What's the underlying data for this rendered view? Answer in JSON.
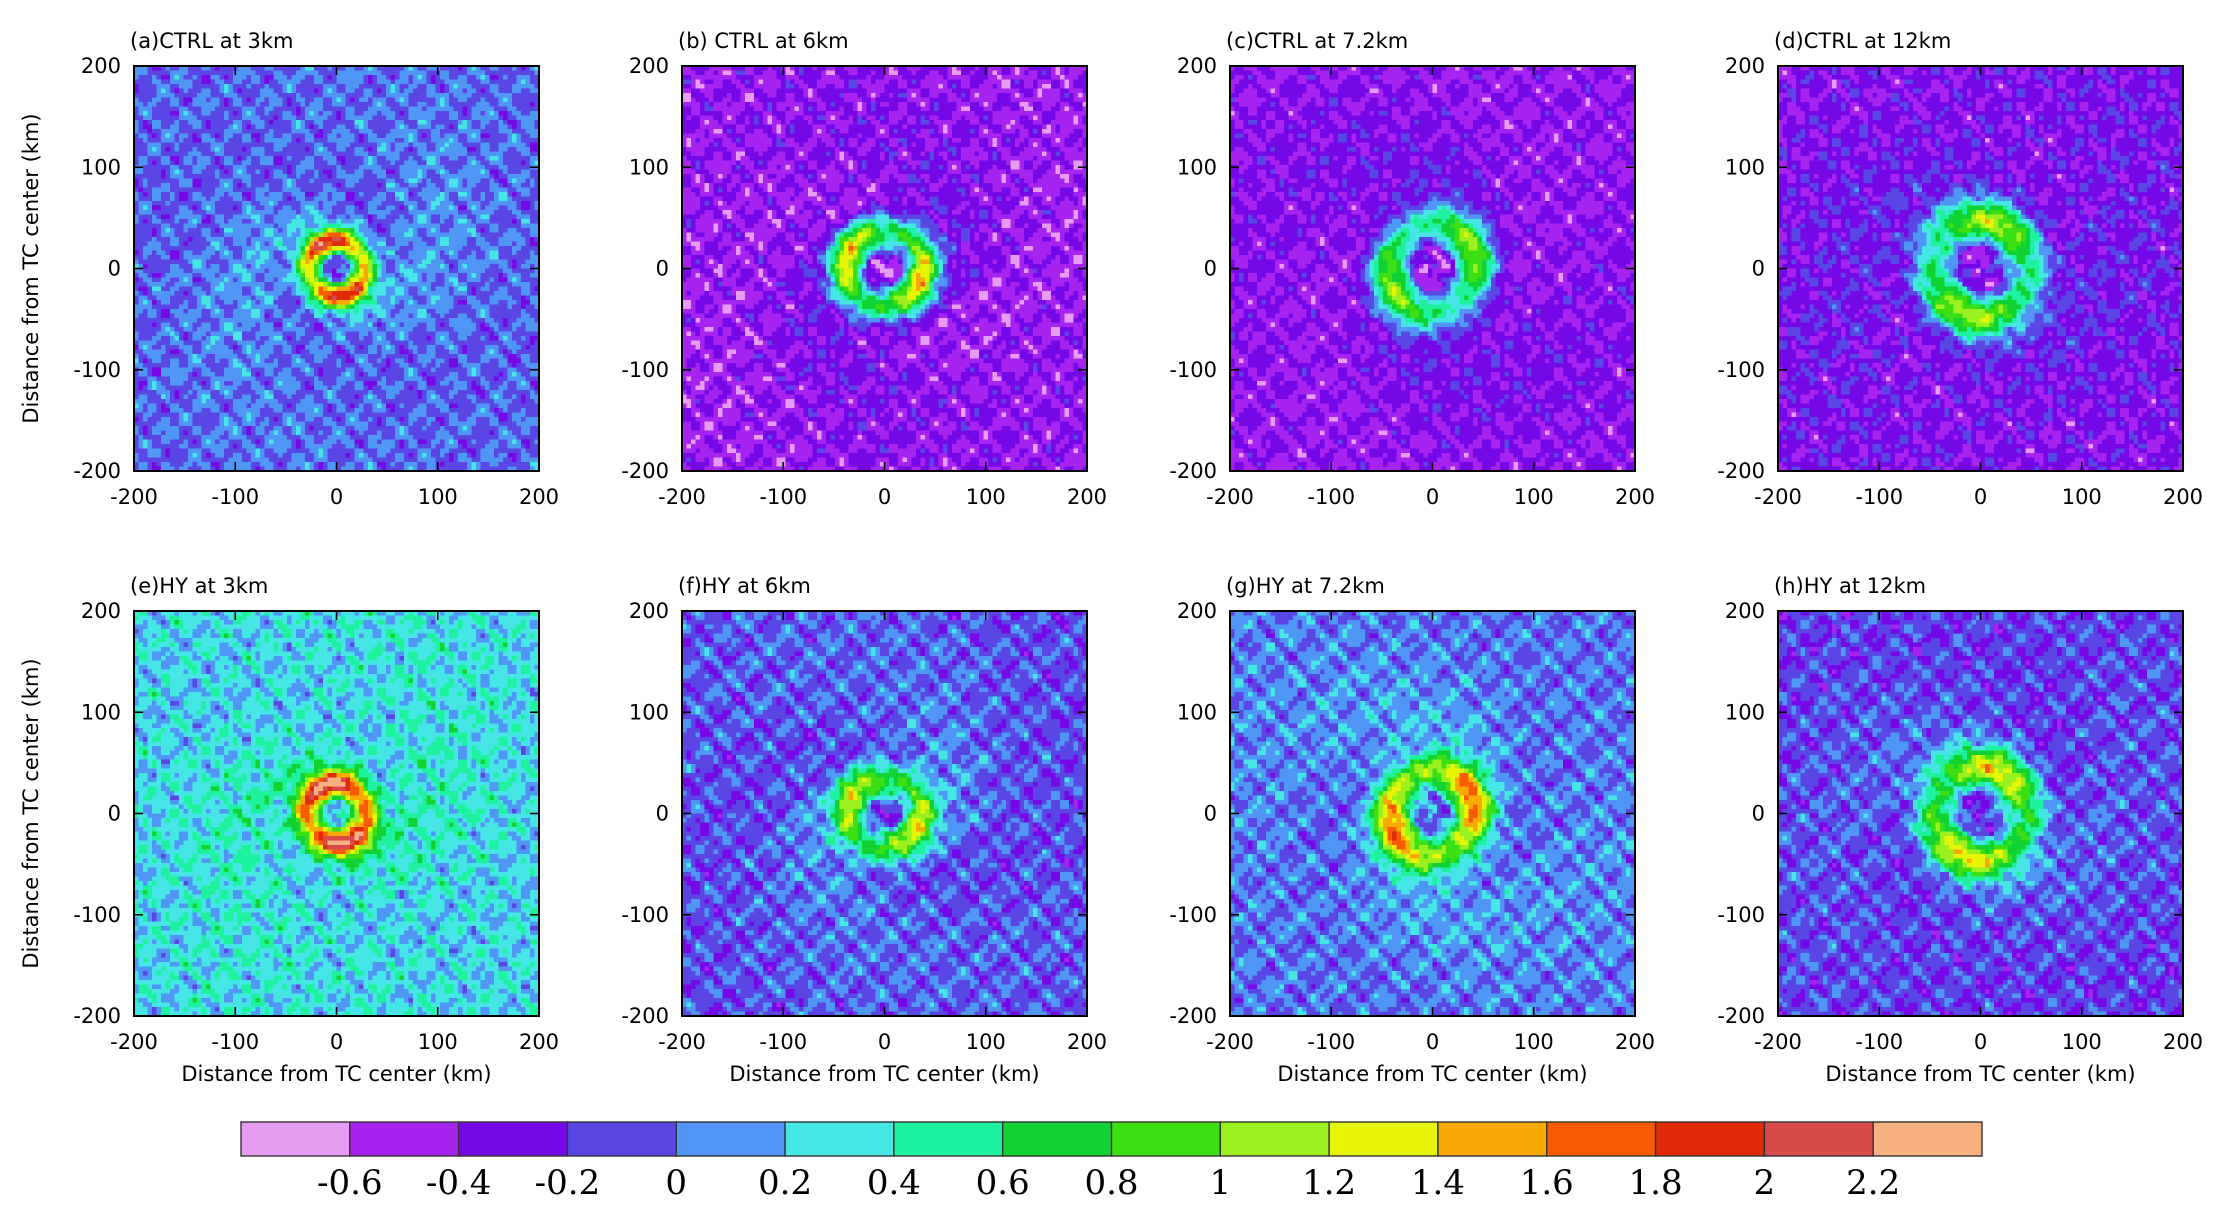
{
  "chart_data": {
    "type": "heatmap",
    "x_label": "Distance from TC center (km)",
    "y_label": "Distance from TC center (km)",
    "xlim": [
      -200,
      200
    ],
    "ylim": [
      -200,
      200
    ],
    "ticks": [
      "-200",
      "-100",
      "0",
      "100",
      "200"
    ],
    "tick_values": [
      -200,
      -100,
      0,
      100,
      200
    ],
    "panels": [
      {
        "title": "(a)CTRL at 3km",
        "experiment": "CTRL",
        "height_km": 3,
        "eyewall_radius_km": 28,
        "eyewall_peak": 1.9,
        "background": -0.05,
        "noise": 0.35
      },
      {
        "title": "(b) CTRL at 6km",
        "experiment": "CTRL",
        "height_km": 6,
        "eyewall_radius_km": 38,
        "eyewall_peak": 1.7,
        "background": -0.45,
        "noise": 0.35
      },
      {
        "title": "(c)CTRL at 7.2km",
        "experiment": "CTRL",
        "height_km": 7.2,
        "eyewall_radius_km": 44,
        "eyewall_peak": 1.3,
        "background": -0.42,
        "noise": 0.3
      },
      {
        "title": "(d)CTRL at 12km",
        "experiment": "CTRL",
        "height_km": 12,
        "eyewall_radius_km": 48,
        "eyewall_peak": 1.3,
        "background": -0.35,
        "noise": 0.35
      },
      {
        "title": "(e)HY at 3km",
        "experiment": "HY",
        "height_km": 3,
        "eyewall_radius_km": 30,
        "eyewall_peak": 1.9,
        "background": 0.25,
        "noise": 0.4
      },
      {
        "title": "(f)HY at 6km",
        "experiment": "HY",
        "height_km": 6,
        "eyewall_radius_km": 36,
        "eyewall_peak": 1.2,
        "background": -0.1,
        "noise": 0.4
      },
      {
        "title": "(g)HY at 7.2km",
        "experiment": "HY",
        "height_km": 7.2,
        "eyewall_radius_km": 42,
        "eyewall_peak": 1.5,
        "background": 0.0,
        "noise": 0.38
      },
      {
        "title": "(h)HY at 12km",
        "experiment": "HY",
        "height_km": 12,
        "eyewall_radius_km": 46,
        "eyewall_peak": 1.3,
        "background": -0.15,
        "noise": 0.4
      }
    ],
    "colorbar": {
      "levels": [
        "-0.6",
        "-0.4",
        "-0.2",
        "0",
        "0.2",
        "0.4",
        "0.6",
        "0.8",
        "1",
        "1.2",
        "1.4",
        "1.6",
        "1.8",
        "2",
        "2.2"
      ],
      "level_values": [
        -0.6,
        -0.4,
        -0.2,
        0,
        0.2,
        0.4,
        0.6,
        0.8,
        1,
        1.2,
        1.4,
        1.6,
        1.8,
        2,
        2.2
      ],
      "colors": [
        "#e59cf2",
        "#a623f0",
        "#7408e6",
        "#5a45e5",
        "#4f96f5",
        "#46e6e6",
        "#1ef29e",
        "#12d233",
        "#3cde14",
        "#9bf020",
        "#e6f505",
        "#f6aa03",
        "#f75c04",
        "#e02a08",
        "#d94a4a",
        "#f7b181"
      ]
    }
  }
}
